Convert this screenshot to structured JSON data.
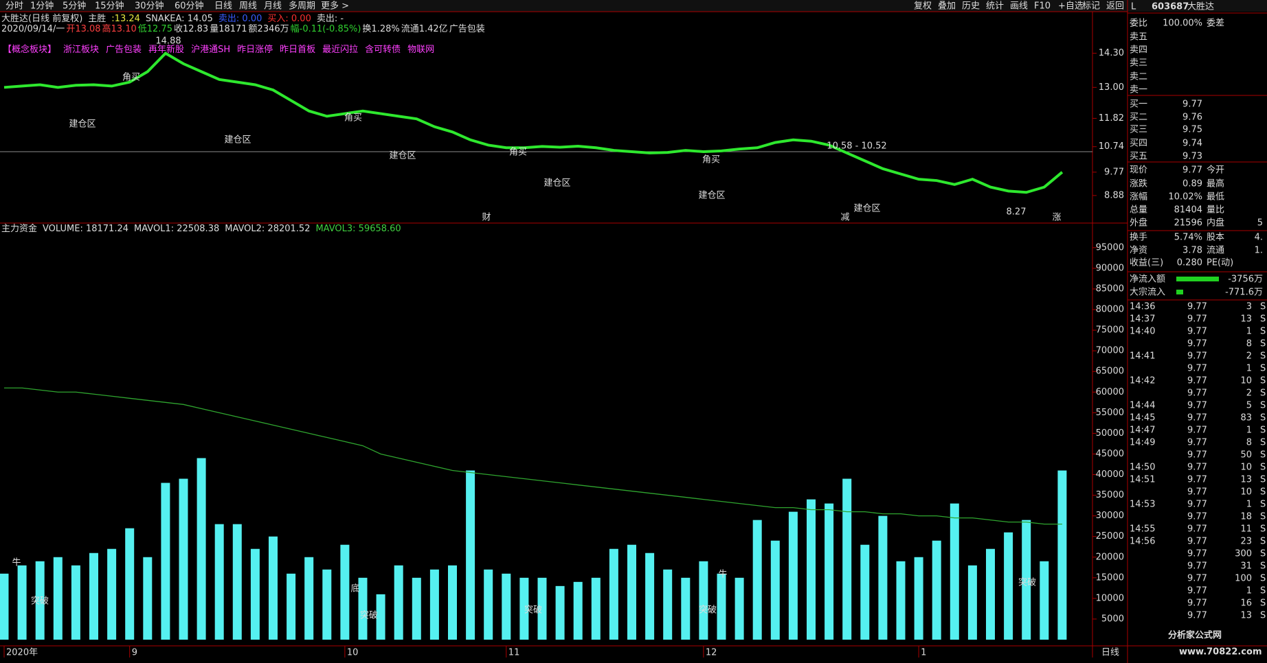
{
  "menu": {
    "left": [
      "分时",
      "1分钟",
      "5分钟",
      "15分钟",
      "30分钟",
      "60分钟",
      "日线",
      "周线",
      "月线",
      "多周期",
      "更多 >"
    ],
    "right": [
      "复权",
      "叠加",
      "历史",
      "统计",
      "画线",
      "F10",
      "+自选",
      "标记",
      "返回"
    ]
  },
  "info": {
    "line1": [
      "大胜达(日线 前复权)",
      "主胜",
      ":13.24",
      "SNAKEA: 14.05",
      "卖出: 0.00",
      "买入: 0.00",
      "卖出: -"
    ],
    "line2": [
      "2020/09/14/一",
      "开13.08",
      "高13.10",
      "低12.75",
      "收12.83",
      "量18171",
      "额2346万",
      "幅-0.11(-0.85%)",
      "换1.28%",
      "流通1.42亿",
      "广告包装"
    ],
    "line3": [
      "【概念板块】",
      "浙江板块",
      "广告包装",
      "再年新股",
      "沪港通SH",
      "昨日涨停",
      "昨日首板",
      "最近闪拉",
      "含可转债",
      "物联网"
    ]
  },
  "chart_data": [
    {
      "type": "line",
      "ylim": [
        7.83,
        15.72
      ],
      "yticks": [
        {
          "value": 14.3,
          "label": "14.30"
        },
        {
          "value": 13,
          "label": "13.00"
        },
        11.82,
        10.74,
        9.77,
        8.88
      ],
      "series": [
        {
          "color": "#2ee82e",
          "values": [
            13.0,
            13.05,
            13.1,
            13.0,
            13.08,
            13.1,
            13.05,
            13.2,
            13.6,
            14.3,
            13.9,
            13.6,
            13.3,
            13.2,
            13.1,
            12.9,
            12.5,
            12.1,
            11.9,
            12.0,
            12.1,
            12.0,
            11.9,
            11.8,
            11.5,
            11.3,
            11.0,
            10.8,
            10.7,
            10.7,
            10.75,
            10.72,
            10.76,
            10.7,
            10.6,
            10.55,
            10.5,
            10.52,
            10.6,
            10.55,
            10.58,
            10.65,
            10.7,
            10.9,
            11.0,
            10.95,
            10.8,
            10.5,
            10.2,
            9.9,
            9.7,
            9.5,
            9.45,
            9.3,
            9.5,
            9.2,
            9.05,
            9.0,
            9.2,
            9.77
          ]
        }
      ],
      "annotations": [
        "建仓区",
        "建仓区",
        "建仓区",
        "建仓区",
        "建仓区",
        "建仓区",
        "角买",
        "角买",
        "角买",
        "角买",
        "14.88",
        "10.58 - 10.52",
        "8.27",
        "财",
        "减",
        "涨"
      ]
    },
    {
      "type": "bar",
      "header": [
        "主力资金",
        "VOLUME: 18171.24",
        "MAVOL1: 22508.38",
        "MAVOL2: 28201.52",
        "MAVOL3: 59658.60"
      ],
      "ylim": [
        0,
        99300
      ],
      "yticks": [
        5000,
        10000,
        15000,
        20000,
        25000,
        30000,
        35000,
        40000,
        45000,
        50000,
        55000,
        60000,
        65000,
        70000,
        75000,
        80000,
        85000,
        90000,
        95000
      ],
      "categories": [
        "2020年",
        null,
        null,
        null,
        null,
        null,
        null,
        "9",
        null,
        null,
        null,
        null,
        null,
        null,
        null,
        null,
        null,
        null,
        null,
        "10",
        null,
        null,
        null,
        null,
        null,
        null,
        null,
        null,
        "11",
        null,
        null,
        null,
        null,
        null,
        null,
        null,
        null,
        null,
        null,
        "12",
        null,
        null,
        null,
        null,
        null,
        null,
        null,
        null,
        null,
        null,
        null,
        "1",
        null,
        null,
        null,
        null,
        null,
        null,
        null,
        null
      ],
      "series": [
        {
          "type": "bar",
          "color": "#55f0f0",
          "values": [
            16000,
            18000,
            19000,
            20000,
            18000,
            21000,
            22000,
            27000,
            20000,
            38000,
            39000,
            44000,
            28000,
            28000,
            22000,
            25000,
            16000,
            20000,
            17000,
            23000,
            15000,
            11000,
            18000,
            15000,
            17000,
            18000,
            41000,
            17000,
            16000,
            15000,
            15000,
            13000,
            14000,
            15000,
            22000,
            23000,
            21000,
            17000,
            15000,
            19000,
            16000,
            15000,
            29000,
            24000,
            31000,
            34000,
            33000,
            39000,
            23000,
            30000,
            19000,
            20000,
            24000,
            33000,
            18000,
            22000,
            26000,
            29000,
            19000,
            41000
          ]
        },
        {
          "type": "line",
          "color": "#2fa52f",
          "values": [
            61000,
            61000,
            60500,
            60000,
            60000,
            59500,
            59000,
            58500,
            58000,
            57500,
            57000,
            56000,
            55000,
            54000,
            53000,
            52000,
            51000,
            50000,
            49000,
            48000,
            47000,
            45000,
            44000,
            43000,
            42000,
            41000,
            40500,
            40000,
            39500,
            39000,
            38500,
            38000,
            37500,
            37000,
            36500,
            36000,
            35500,
            35000,
            34500,
            34000,
            33500,
            33000,
            32500,
            32000,
            32000,
            31500,
            31500,
            31000,
            31000,
            30500,
            30500,
            30000,
            30000,
            29500,
            29500,
            29000,
            28500,
            28500,
            28000,
            28000
          ]
        }
      ],
      "annotations": [
        "牛",
        "突破",
        "底",
        "突破",
        "突破",
        "突破",
        "牛",
        "突破"
      ]
    }
  ],
  "quote": {
    "flag": "L",
    "code": "603687",
    "name": "大胜达",
    "rows": [
      [
        "委比",
        "100.00%",
        "委差"
      ],
      [
        "卖五"
      ],
      [
        "卖四"
      ],
      [
        "卖三"
      ],
      [
        "卖二"
      ],
      [
        "卖一"
      ],
      [
        "买一",
        "9.77"
      ],
      [
        "买二",
        "9.76"
      ],
      [
        "买三",
        "9.75"
      ],
      [
        "买四",
        "9.74"
      ],
      [
        "买五",
        "9.73"
      ],
      [
        "现价",
        "9.77",
        "今开"
      ],
      [
        "涨跌",
        "0.89",
        "最高"
      ],
      [
        "涨幅",
        "10.02%",
        "最低"
      ],
      [
        "总量",
        "81404",
        "量比"
      ],
      [
        "外盘",
        "21596",
        "内盘",
        "5"
      ],
      [
        "换手",
        "5.74%",
        "股本",
        "4."
      ],
      [
        "净资",
        "3.78",
        "流通",
        "1."
      ],
      [
        "收益(三)",
        "0.280",
        "PE(动)"
      ]
    ],
    "flows": [
      [
        "净流入额",
        "-3756万"
      ],
      [
        "大宗流入",
        "-771.6万"
      ]
    ]
  },
  "trades": [
    [
      "14:36",
      "9.77",
      "3",
      "S"
    ],
    [
      "14:37",
      "9.77",
      "13",
      "S"
    ],
    [
      "14:40",
      "9.77",
      "1",
      "S"
    ],
    [
      null,
      "9.77",
      "8",
      "S"
    ],
    [
      "14:41",
      "9.77",
      "2",
      "S"
    ],
    [
      null,
      "9.77",
      "1",
      "S"
    ],
    [
      "14:42",
      "9.77",
      "10",
      "S"
    ],
    [
      null,
      "9.77",
      "2",
      "S"
    ],
    [
      "14:44",
      "9.77",
      "5",
      "S"
    ],
    [
      "14:45",
      "9.77",
      "83",
      "S"
    ],
    [
      "14:47",
      "9.77",
      "1",
      "S"
    ],
    [
      "14:49",
      "9.77",
      "8",
      "S"
    ],
    [
      null,
      "9.77",
      "50",
      "S"
    ],
    [
      "14:50",
      "9.77",
      "10",
      "S"
    ],
    [
      "14:51",
      "9.77",
      "13",
      "S"
    ],
    [
      null,
      "9.77",
      "10",
      "S"
    ],
    [
      "14:53",
      "9.77",
      "1",
      "S"
    ],
    [
      null,
      "9.77",
      "18",
      "S"
    ],
    [
      "14:55",
      "9.77",
      "11",
      "S"
    ],
    [
      "14:56",
      "9.77",
      "23",
      "S"
    ],
    [
      null,
      "9.77",
      "300",
      "S"
    ],
    [
      null,
      "9.77",
      "31",
      "S"
    ],
    [
      null,
      "9.77",
      "100",
      "S"
    ],
    [
      null,
      "9.77",
      "1",
      "S"
    ],
    [
      null,
      "9.77",
      "16",
      "S"
    ],
    [
      null,
      "9.77",
      "13",
      "S"
    ]
  ],
  "footer": {
    "period": "日线",
    "watermark": "分析家公式网",
    "site": "www.70822.com"
  }
}
